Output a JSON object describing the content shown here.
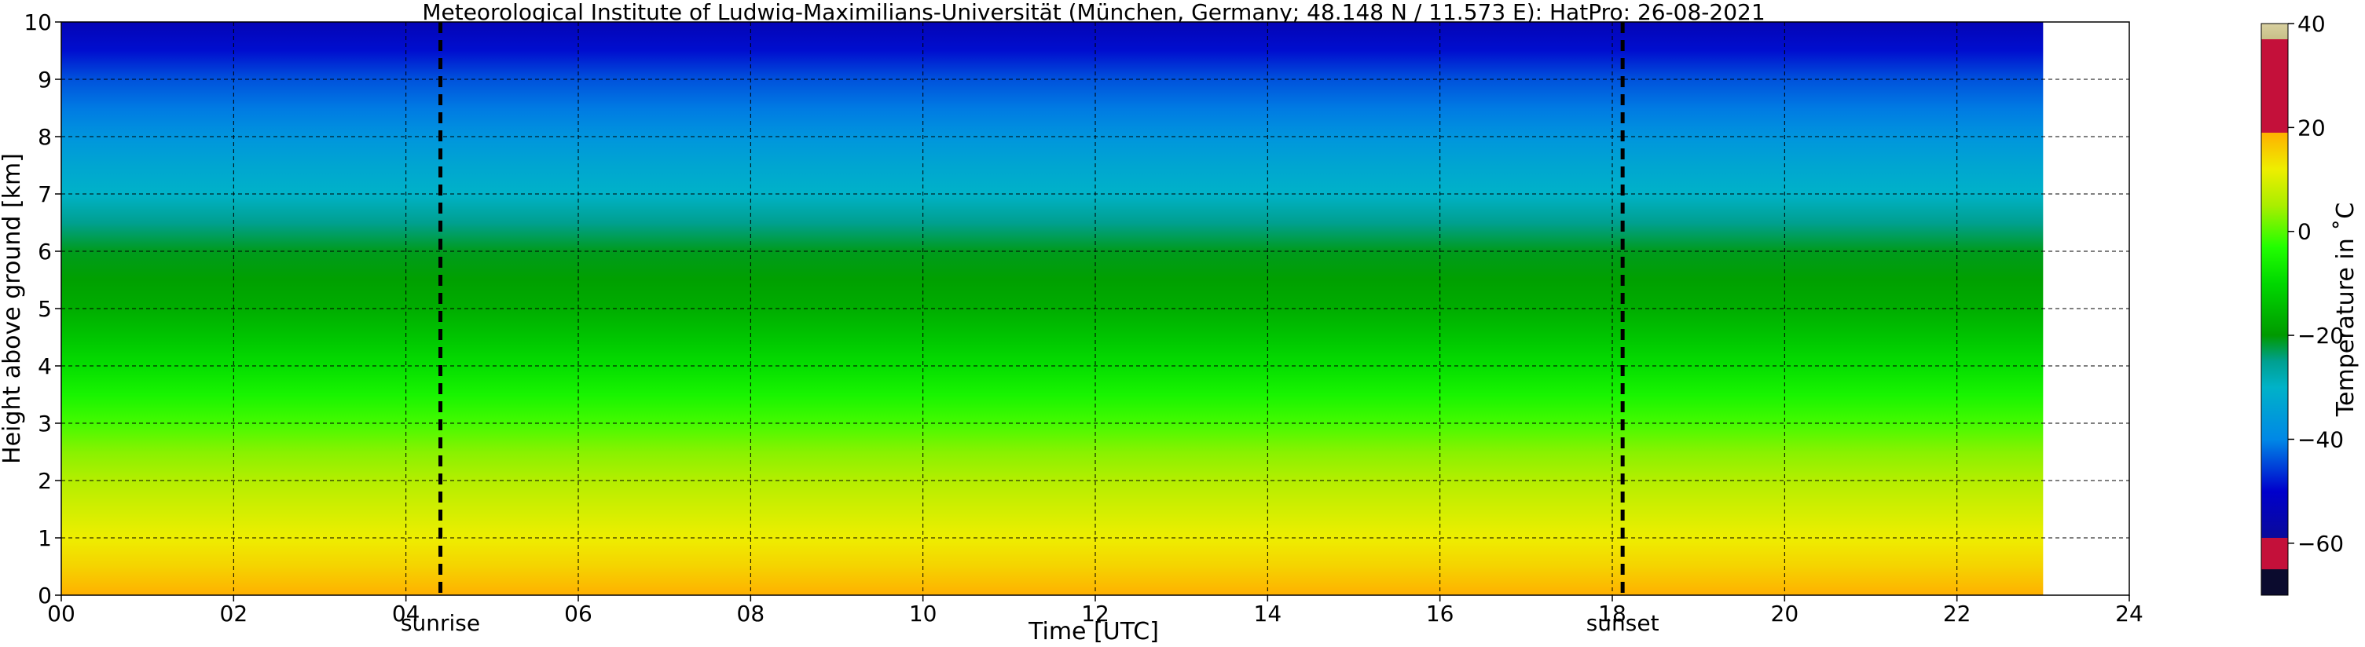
{
  "chart_data": {
    "type": "heatmap",
    "title": "Meteorological Institute of Ludwig-Maximilians-Universität (München, Germany; 48.148 N / 11.573 E):    HatPro: 26-08-2021",
    "xlabel": "Time [UTC]",
    "ylabel": "Height above ground [km]",
    "xlim": [
      0,
      24
    ],
    "ylim": [
      0,
      10
    ],
    "x_ticks": [
      "00",
      "02",
      "04",
      "06",
      "08",
      "10",
      "12",
      "14",
      "16",
      "18",
      "20",
      "22",
      "24"
    ],
    "y_ticks": [
      "0",
      "1",
      "2",
      "3",
      "4",
      "5",
      "6",
      "7",
      "8",
      "9",
      "10"
    ],
    "data_extent_hours": [
      0,
      23
    ],
    "grid": true,
    "events": [
      {
        "label": "sunrise",
        "time": 4.4
      },
      {
        "label": "sunset",
        "time": 18.12
      }
    ],
    "colorbar": {
      "label": "Temperature in ˚C",
      "range": [
        -70,
        40
      ],
      "ticks": [
        "−60",
        "−40",
        "−20",
        "0",
        "20",
        "40"
      ],
      "position": "right",
      "stops": [
        {
          "value": -70,
          "color": "#0b0b2e"
        },
        {
          "value": -65,
          "color": "#0b0b2e"
        },
        {
          "value": -65,
          "color": "#c4103a"
        },
        {
          "value": -59,
          "color": "#c4103a"
        },
        {
          "value": -59,
          "color": "#0a0a9a"
        },
        {
          "value": -50,
          "color": "#0000cc"
        },
        {
          "value": -40,
          "color": "#0088e6"
        },
        {
          "value": -30,
          "color": "#00b2c8"
        },
        {
          "value": -25,
          "color": "#00a090"
        },
        {
          "value": -20,
          "color": "#009a00"
        },
        {
          "value": -10,
          "color": "#00d800"
        },
        {
          "value": -3,
          "color": "#22ff00"
        },
        {
          "value": 5,
          "color": "#aaee00"
        },
        {
          "value": 12,
          "color": "#eeee00"
        },
        {
          "value": 19,
          "color": "#ffb000"
        },
        {
          "value": 19,
          "color": "#c4103a"
        },
        {
          "value": 37,
          "color": "#c4103a"
        },
        {
          "value": 37,
          "color": "#c8c088"
        },
        {
          "value": 40,
          "color": "#d8d0a0"
        }
      ]
    },
    "profile_height_km": [
      0,
      0.5,
      1,
      1.5,
      2,
      2.5,
      3,
      3.5,
      4,
      4.5,
      5,
      5.5,
      6,
      6.5,
      7,
      7.5,
      8,
      8.5,
      9,
      9.5,
      10
    ],
    "profile_temperature_c": [
      19,
      15,
      12,
      9,
      6,
      3,
      -1,
      -5,
      -9,
      -13,
      -17,
      -19,
      -21,
      -25,
      -30,
      -33,
      -37,
      -41,
      -44,
      -49,
      -54
    ]
  }
}
